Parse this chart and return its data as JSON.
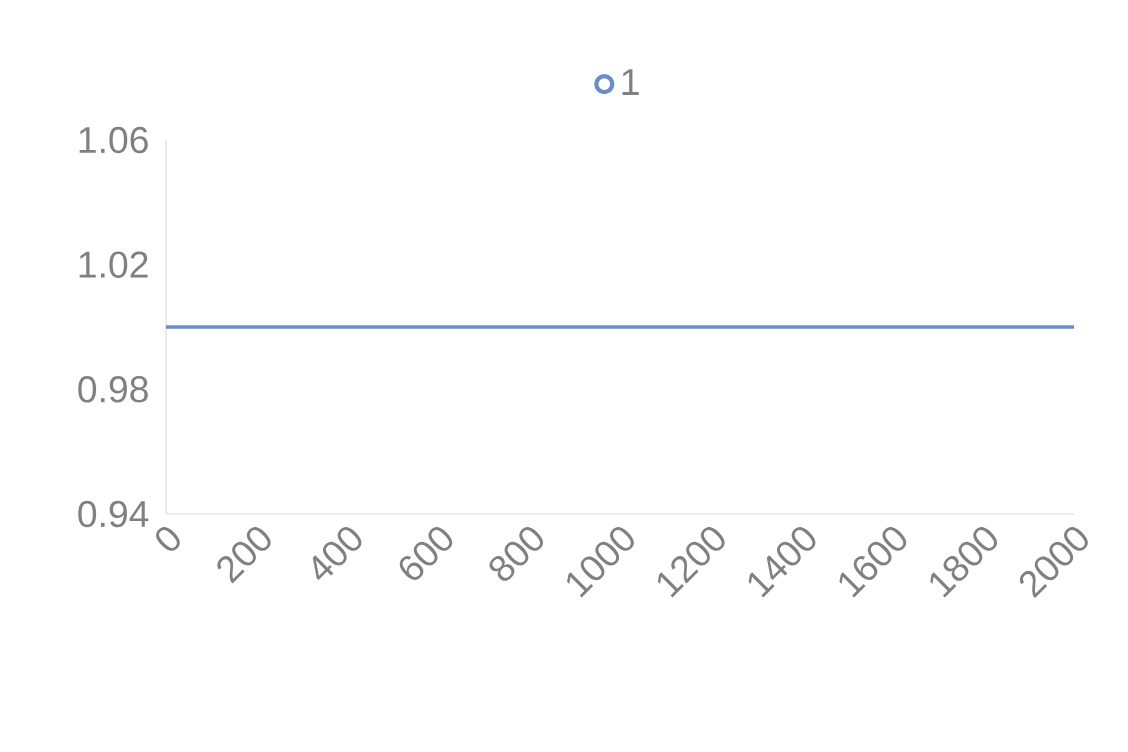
{
  "chart_data": {
    "type": "line",
    "x": [
      0,
      2000
    ],
    "series": [
      {
        "name": "1",
        "color": "#6a8cc7",
        "values": [
          1,
          1
        ]
      }
    ],
    "xlim": [
      0,
      2000
    ],
    "ylim": [
      0.94,
      1.06
    ],
    "xticks": [
      0,
      200,
      400,
      600,
      800,
      1000,
      1200,
      1400,
      1600,
      1800,
      2000
    ],
    "yticks": [
      0.94,
      0.98,
      1.02,
      1.06
    ],
    "legend": "top"
  }
}
